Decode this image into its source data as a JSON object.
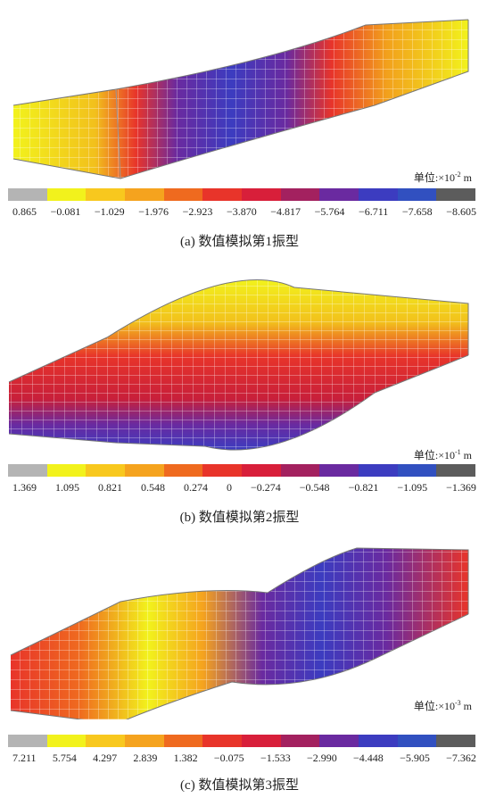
{
  "figures": [
    {
      "caption": "(a) 数值模拟第1振型",
      "unit_prefix": "单位:×10",
      "unit_exp": "-2",
      "unit_suffix": " m",
      "ticks": [
        "0.865",
        "−0.081",
        "−1.029",
        "−1.976",
        "−2.923",
        "−3.870",
        "−4.817",
        "−5.764",
        "−6.711",
        "−7.658",
        "−8.605"
      ]
    },
    {
      "caption": "(b) 数值模拟第2振型",
      "unit_prefix": "单位:×10",
      "unit_exp": "-1",
      "unit_suffix": " m",
      "ticks": [
        "1.369",
        "1.095",
        "0.821",
        "0.548",
        "0.274",
        "0",
        "−0.274",
        "−0.548",
        "−0.821",
        "−1.095",
        "−1.369"
      ]
    },
    {
      "caption": "(c) 数值模拟第3振型",
      "unit_prefix": "单位:×10",
      "unit_exp": "-3",
      "unit_suffix": " m",
      "ticks": [
        "7.211",
        "5.754",
        "4.297",
        "2.839",
        "1.382",
        "−0.075",
        "−1.533",
        "−2.990",
        "−4.448",
        "−5.905",
        "−7.362"
      ]
    }
  ],
  "colorbar": [
    "#b4b4b4",
    "#f2f21c",
    "#f8c81e",
    "#f5a31e",
    "#ef6a1f",
    "#e8342a",
    "#d81f3a",
    "#a3215f",
    "#6a2aa0",
    "#3c3cc0",
    "#3150c0",
    "#5c5c5c"
  ]
}
